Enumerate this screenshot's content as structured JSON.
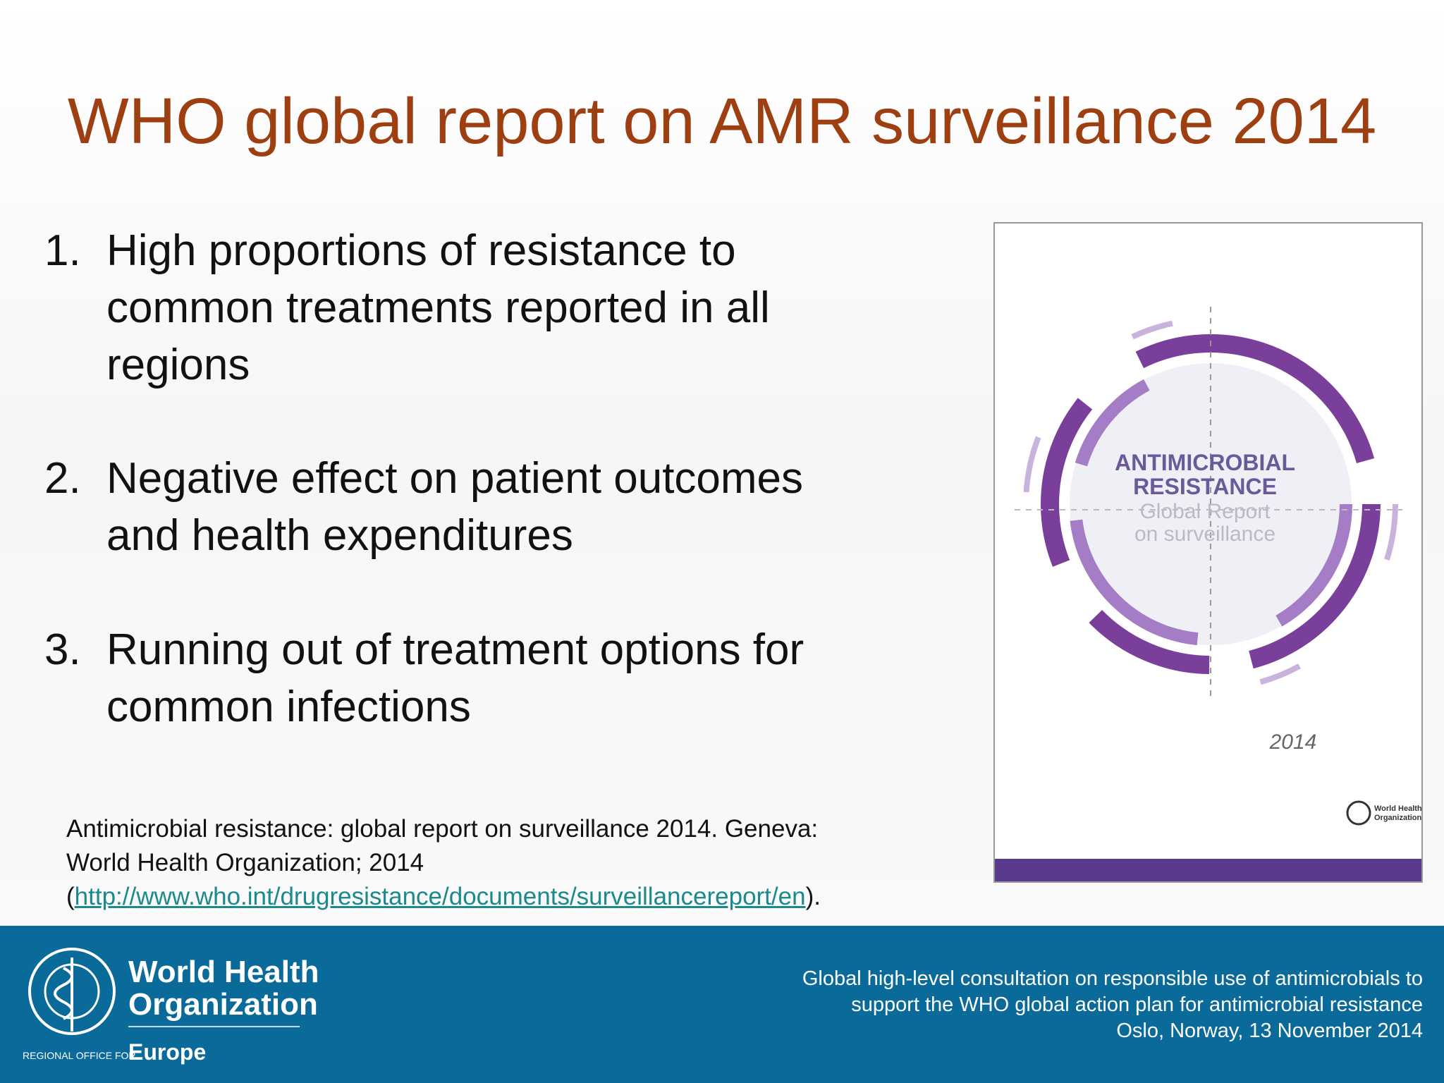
{
  "title": "WHO global report on AMR surveillance 2014",
  "items": [
    {
      "number": "1.",
      "lines": [
        "High proportions of resistance to",
        "common treatments reported in all",
        "regions"
      ]
    },
    {
      "number": "2.",
      "lines": [
        "Negative effect on patient outcomes",
        "and health expenditures"
      ]
    },
    {
      "number": "3.",
      "lines": [
        "Running out of treatment options for",
        "common infections"
      ]
    }
  ],
  "citation": {
    "lines": [
      "Antimicrobial resistance: global report on surveillance 2014. Geneva:",
      "World Health Organization; 2014"
    ],
    "open": "(",
    "link": "http://www.who.int/drugresistance/documents/surveillancereport/en",
    "close": ")."
  },
  "cover": {
    "title": [
      "ANTIMICROBIAL",
      "RESISTANCE"
    ],
    "subtitle": [
      "Global Report",
      "on surveillance"
    ],
    "year": "2014",
    "publisher": [
      "World Health",
      "Organization"
    ]
  },
  "footer": {
    "logo": {
      "name": [
        "World Health",
        "Organization"
      ],
      "office": "REGIONAL OFFICE FOR",
      "region": "Europe"
    },
    "event": [
      "Global high-level consultation on responsible use of antimicrobials to",
      "support the WHO global action plan for antimicrobial resistance",
      "Oslo, Norway, 13 November 2014"
    ]
  }
}
